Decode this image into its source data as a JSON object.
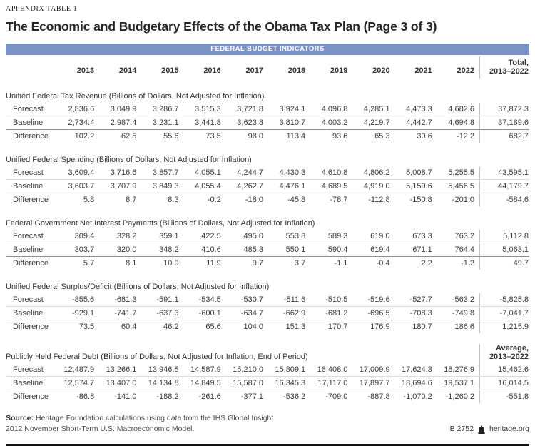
{
  "page": {
    "eyebrow": "APPENDIX TABLE 1",
    "title": "The Economic and Budgetary Effects of the Obama Tax Plan (Page 3 of 3)"
  },
  "band": {
    "label": "FEDERAL BUDGET INDICATORS"
  },
  "colors": {
    "band_blue": "#7b93c4",
    "divider_gray": "#c3c3c3",
    "rule_black": "#111111"
  },
  "columns": {
    "years": [
      "2013",
      "2014",
      "2015",
      "2016",
      "2017",
      "2018",
      "2019",
      "2020",
      "2021",
      "2022"
    ],
    "total_label": "Total,\n2013–2022",
    "average_label": "Average,\n2013–2022"
  },
  "sections": [
    {
      "heading": "Unified Federal Tax Revenue (Billions of Dollars, Not Adjusted for Inflation)",
      "last_col": "total",
      "rows": [
        {
          "label": "Forecast",
          "values": [
            "2,836.6",
            "3,049.9",
            "3,286.7",
            "3,515.3",
            "3,721.8",
            "3,924.1",
            "4,096.8",
            "4,285.1",
            "4,473.3",
            "4,682.6"
          ],
          "total": "37,872.3"
        },
        {
          "label": "Baseline",
          "values": [
            "2,734.4",
            "2,987.4",
            "3,231.1",
            "3,441.8",
            "3,623.8",
            "3,810.7",
            "4,003.2",
            "4,219.7",
            "4,442.7",
            "4,694.8"
          ],
          "total": "37,189.6"
        },
        {
          "label": "Difference",
          "values": [
            "102.2",
            "62.5",
            "55.6",
            "73.5",
            "98.0",
            "113.4",
            "93.6",
            "65.3",
            "30.6",
            "-12.2"
          ],
          "total": "682.7"
        }
      ]
    },
    {
      "heading": "Unified Federal Spending (Billions of Dollars, Not Adjusted for Inflation)",
      "last_col": "total",
      "rows": [
        {
          "label": "Forecast",
          "values": [
            "3,609.4",
            "3,716.6",
            "3,857.7",
            "4,055.1",
            "4,244.7",
            "4,430.3",
            "4,610.8",
            "4,806.2",
            "5,008.7",
            "5,255.5"
          ],
          "total": "43,595.1"
        },
        {
          "label": "Baseline",
          "values": [
            "3,603.7",
            "3,707.9",
            "3,849.3",
            "4,055.4",
            "4,262.7",
            "4,476.1",
            "4,689.5",
            "4,919.0",
            "5,159.6",
            "5,456.5"
          ],
          "total": "44,179.7"
        },
        {
          "label": "Difference",
          "values": [
            "5.8",
            "8.7",
            "8.3",
            "-0.2",
            "-18.0",
            "-45.8",
            "-78.7",
            "-112.8",
            "-150.8",
            "-201.0"
          ],
          "total": "-584.6"
        }
      ]
    },
    {
      "heading": "Federal Government Net Interest Payments (Billions of Dollars, Not Adjusted for Inflation)",
      "last_col": "total",
      "rows": [
        {
          "label": "Forecast",
          "values": [
            "309.4",
            "328.2",
            "359.1",
            "422.5",
            "495.0",
            "553.8",
            "589.3",
            "619.0",
            "673.3",
            "763.2"
          ],
          "total": "5,112.8"
        },
        {
          "label": "Baseline",
          "values": [
            "303.7",
            "320.0",
            "348.2",
            "410.6",
            "485.3",
            "550.1",
            "590.4",
            "619.4",
            "671.1",
            "764.4"
          ],
          "total": "5,063.1"
        },
        {
          "label": "Difference",
          "values": [
            "5.7",
            "8.1",
            "10.9",
            "11.9",
            "9.7",
            "3.7",
            "-1.1",
            "-0.4",
            "2.2",
            "-1.2"
          ],
          "total": "49.7"
        }
      ]
    },
    {
      "heading": "Unified Federal Surplus/Deficit (Billions of Dollars, Not Adjusted for Inflation)",
      "last_col": "total",
      "rows": [
        {
          "label": "Forecast",
          "values": [
            "-855.6",
            "-681.3",
            "-591.1",
            "-534.5",
            "-530.7",
            "-511.6",
            "-510.5",
            "-519.6",
            "-527.7",
            "-563.2"
          ],
          "total": "-5,825.8"
        },
        {
          "label": "Baseline",
          "values": [
            "-929.1",
            "-741.7",
            "-637.3",
            "-600.1",
            "-634.7",
            "-662.9",
            "-681.2",
            "-696.5",
            "-708.3",
            "-749.8"
          ],
          "total": "-7,041.7"
        },
        {
          "label": "Difference",
          "values": [
            "73.5",
            "60.4",
            "46.2",
            "65.6",
            "104.0",
            "151.3",
            "170.7",
            "176.9",
            "180.7",
            "186.6"
          ],
          "total": "1,215.9"
        }
      ]
    },
    {
      "heading": "Publicly Held Federal Debt (Billions of Dollars, Not Adjusted for Inflation, End of Period)",
      "last_col": "average",
      "rows": [
        {
          "label": "Forecast",
          "values": [
            "12,487.9",
            "13,266.1",
            "13,946.5",
            "14,587.9",
            "15,210.0",
            "15,809.1",
            "16,408.0",
            "17,009.9",
            "17,624.3",
            "18,276.9"
          ],
          "total": "15,462.6"
        },
        {
          "label": "Baseline",
          "values": [
            "12,574.7",
            "13,407.0",
            "14,134.8",
            "14,849.5",
            "15,587.0",
            "16,345.3",
            "17,117.0",
            "17,897.7",
            "18,694.6",
            "19,537.1"
          ],
          "total": "16,014.5"
        },
        {
          "label": "Difference",
          "values": [
            "-86.8",
            "-141.0",
            "-188.2",
            "-261.6",
            "-377.1",
            "-536.2",
            "-709.0",
            "-887.8",
            "-1,070.2",
            "-1,260.2"
          ],
          "total": "-551.8"
        }
      ]
    }
  ],
  "footer": {
    "source_label": "Source:",
    "source_line1": "Heritage Foundation calculations using data from the IHS Global Insight",
    "source_line2": "2012 November Short-Term U.S. Macroeconomic Model.",
    "doc_code": "B 2752",
    "site": "heritage.org"
  }
}
